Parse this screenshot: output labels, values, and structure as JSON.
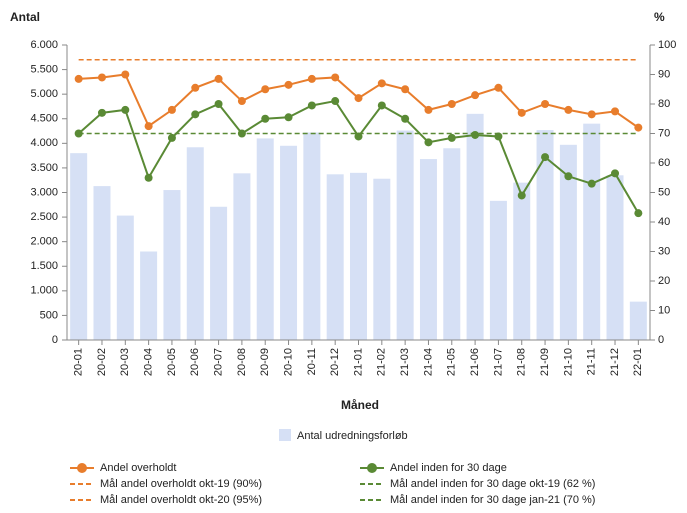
{
  "chart_data": {
    "type": "combo",
    "y_label": "Antal",
    "y2_label": "%",
    "x_label": "Måned",
    "categories": [
      "20-01",
      "20-02",
      "20-03",
      "20-04",
      "20-05",
      "20-06",
      "20-07",
      "20-08",
      "20-09",
      "20-10",
      "20-11",
      "20-12",
      "21-01",
      "21-02",
      "21-03",
      "21-04",
      "21-05",
      "21-06",
      "21-07",
      "21-08",
      "21-09",
      "21-10",
      "21-11",
      "21-12",
      "22-01"
    ],
    "ylim": [
      0,
      6000
    ],
    "yticks": [
      0,
      500,
      {
        "value": 1000,
        "label": "1.000"
      },
      {
        "value": 1500,
        "label": "1.500"
      },
      {
        "value": 2000,
        "label": "2.000"
      },
      {
        "value": 2500,
        "label": "2.500"
      },
      {
        "value": 3000,
        "label": "3.000"
      },
      {
        "value": 3500,
        "label": "3.500"
      },
      {
        "value": 4000,
        "label": "4.000"
      },
      {
        "value": 4500,
        "label": "4.500"
      },
      {
        "value": 5000,
        "label": "5.000"
      },
      {
        "value": 5500,
        "label": "5.500"
      },
      {
        "value": 6000,
        "label": "6.000"
      }
    ],
    "y2lim": [
      0,
      100
    ],
    "y2ticks": [
      0,
      10,
      20,
      30,
      40,
      50,
      60,
      70,
      80,
      90,
      100
    ],
    "series": [
      {
        "name": "Antal udredningsforløb",
        "kind": "bar",
        "color": "#d6e0f5",
        "values": [
          3800,
          3130,
          2530,
          1800,
          3050,
          3920,
          2710,
          3390,
          4100,
          3950,
          4220,
          3370,
          3400,
          3280,
          4260,
          3680,
          3900,
          4600,
          2830,
          3200,
          4270,
          3970,
          4400,
          3350,
          780
        ]
      },
      {
        "name": "Andel overholdt",
        "kind": "line",
        "axis": "y2",
        "color": "#e87d2c",
        "values": [
          88.5,
          89,
          90,
          72.5,
          78,
          85.5,
          88.5,
          81,
          85,
          86.5,
          88.5,
          89,
          82,
          87,
          85,
          78,
          80,
          83,
          85.5,
          77,
          80,
          78,
          76.5,
          77.5,
          72
        ]
      },
      {
        "name": "Andel inden for 30 dage",
        "kind": "line",
        "axis": "y2",
        "color": "#5a8a35",
        "values": [
          70,
          77,
          78,
          55,
          68.5,
          76.5,
          80,
          70,
          75,
          75.5,
          79.5,
          81,
          69,
          79.5,
          75,
          67,
          68.5,
          69.5,
          69,
          49,
          62,
          55.5,
          53,
          56.5,
          43
        ]
      },
      {
        "name": "Mål andel overholdt okt-19 (90%)",
        "kind": "dashed",
        "axis": "y2",
        "color": "#e87d2c",
        "values": [
          null,
          null,
          null,
          null,
          null,
          null,
          null,
          null,
          null,
          null,
          null,
          null,
          null,
          null,
          null,
          null,
          null,
          null,
          null,
          null,
          null,
          null,
          null,
          null,
          null
        ]
      },
      {
        "name": "Mål andel inden for 30 dage okt-19 (62 %)",
        "kind": "dashed",
        "axis": "y2",
        "color": "#5a8a35",
        "values": [
          null,
          null,
          null,
          null,
          null,
          null,
          null,
          null,
          null,
          null,
          null,
          null,
          null,
          null,
          null,
          null,
          null,
          null,
          null,
          null,
          null,
          null,
          null,
          null,
          null
        ]
      },
      {
        "name": "Mål andel overholdt okt-20 (95%)",
        "kind": "dashed",
        "axis": "y2",
        "color": "#e87d2c",
        "values": [
          95,
          95,
          95,
          95,
          95,
          95,
          95,
          95,
          95,
          95,
          95,
          95,
          95,
          95,
          95,
          95,
          95,
          95,
          95,
          95,
          95,
          95,
          95,
          95,
          95
        ]
      },
      {
        "name": "Mål andel inden for 30 dage jan-21 (70 %)",
        "kind": "dashed",
        "axis": "y2",
        "color": "#5a8a35",
        "values": [
          70,
          70,
          70,
          70,
          70,
          70,
          70,
          70,
          70,
          70,
          70,
          70,
          70,
          70,
          70,
          70,
          70,
          70,
          70,
          70,
          70,
          70,
          70,
          70,
          70
        ]
      }
    ]
  }
}
